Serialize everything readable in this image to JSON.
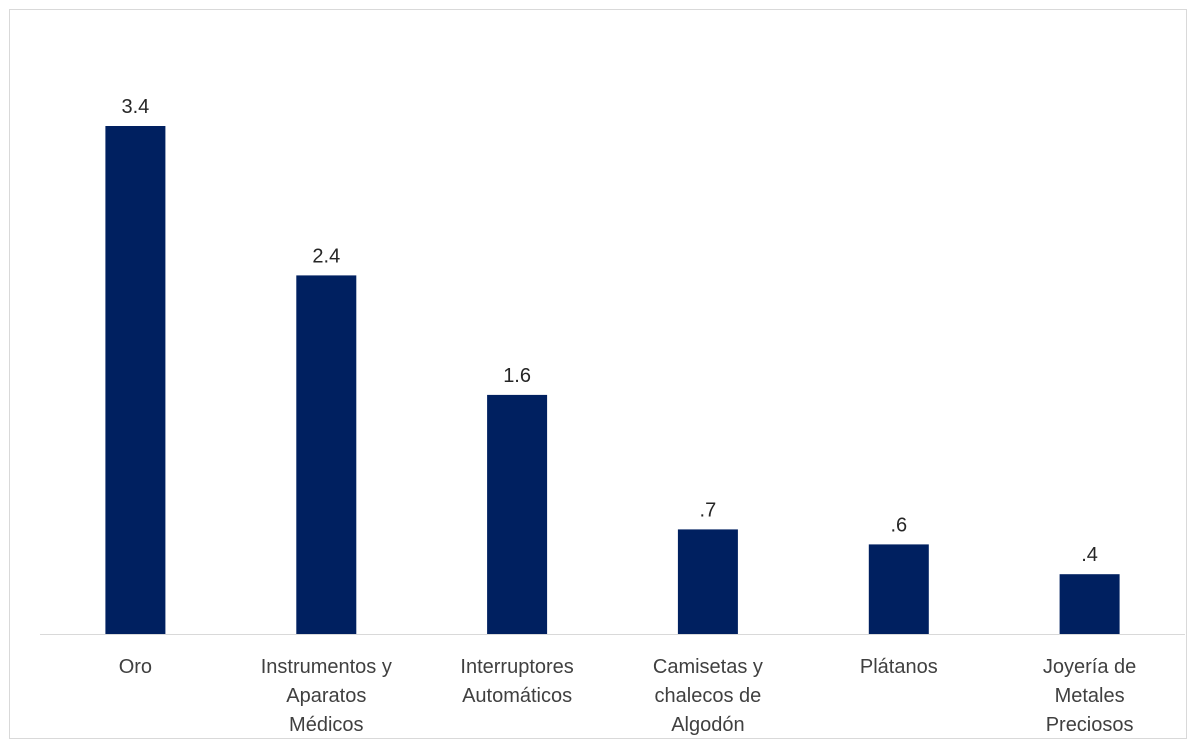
{
  "chart_data": {
    "type": "bar",
    "title": "",
    "xlabel": "",
    "ylabel": "",
    "categories": [
      [
        "Oro"
      ],
      [
        "Instrumentos y",
        "Aparatos",
        "Médicos"
      ],
      [
        "Interruptores",
        "Automáticos"
      ],
      [
        "Camisetas y",
        "chalecos de",
        "Algodón"
      ],
      [
        "Plátanos"
      ],
      [
        "Joyería de",
        "Metales",
        "Preciosos"
      ]
    ],
    "values": [
      3.4,
      2.4,
      1.6,
      0.7,
      0.6,
      0.4
    ],
    "data_labels": [
      "3.4",
      "2.4",
      "1.6",
      ".7",
      ".6",
      ".4"
    ],
    "ylim": [
      0,
      3.4
    ],
    "grid": false,
    "legend": "none",
    "bar_color": "#002060",
    "axis_color": "#d9d9d9"
  }
}
